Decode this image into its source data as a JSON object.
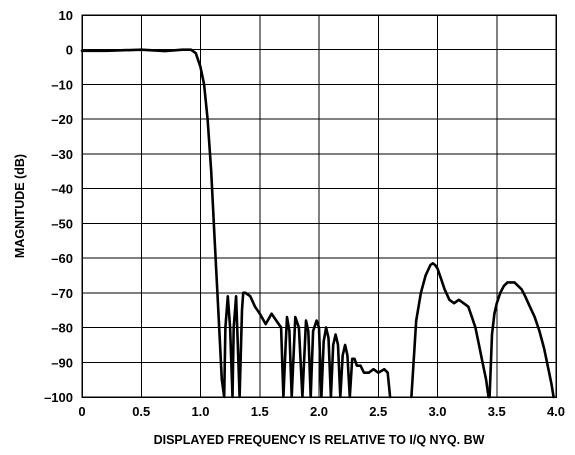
{
  "chart_data": {
    "type": "line",
    "title": "",
    "xlabel": "DISPLAYED FREQUENCY IS RELATIVE TO I/Q NYQ. BW",
    "ylabel": "MAGNITUDE (dB)",
    "xlim": [
      0,
      4.0
    ],
    "ylim": [
      -100,
      10
    ],
    "xticks": [
      0,
      0.5,
      1.0,
      1.5,
      2.0,
      2.5,
      3.0,
      3.5,
      4.0
    ],
    "xtick_labels": [
      "0",
      "0.5",
      "1.0",
      "1.5",
      "2.0",
      "2.5",
      "3.0",
      "3.5",
      "4.0"
    ],
    "yticks": [
      10,
      0,
      -10,
      -20,
      -30,
      -40,
      -50,
      -60,
      -70,
      -80,
      -90,
      -100
    ],
    "ytick_labels": [
      "10",
      "0",
      "–10",
      "–20",
      "–30",
      "–40",
      "–50",
      "–60",
      "–70",
      "–80",
      "–90",
      "–100"
    ],
    "grid": true,
    "series": [
      {
        "x": [
          0,
          0.2,
          0.5,
          0.7,
          0.85,
          0.92,
          0.96,
          1.0,
          1.03,
          1.06,
          1.09,
          1.12,
          1.15,
          1.18,
          1.2,
          1.21,
          1.23,
          1.25,
          1.27,
          1.28,
          1.3,
          1.31,
          1.33,
          1.35,
          1.36,
          1.38,
          1.42,
          1.46,
          1.5,
          1.55,
          1.6,
          1.64,
          1.68,
          1.7,
          1.72,
          1.73,
          1.75,
          1.77,
          1.8,
          1.83,
          1.86,
          1.89,
          1.91,
          1.93,
          1.95,
          1.98,
          2.0,
          2.02,
          2.04,
          2.06,
          2.08,
          2.1,
          2.12,
          2.14,
          2.16,
          2.18,
          2.2,
          2.22,
          2.24,
          2.26,
          2.28,
          2.3,
          2.32,
          2.35,
          2.38,
          2.42,
          2.46,
          2.5,
          2.55,
          2.58,
          2.6
        ],
        "y": [
          -0.3,
          -0.3,
          0,
          -0.4,
          0,
          0,
          -1,
          -5,
          -10,
          -20,
          -35,
          -55,
          -75,
          -95,
          -100,
          -80,
          -71,
          -80,
          -100,
          -80,
          -71,
          -80,
          -100,
          -75,
          -70,
          -70,
          -71,
          -74,
          -76,
          -79,
          -76,
          -78,
          -80,
          -100,
          -84,
          -77,
          -81,
          -100,
          -77,
          -80,
          -100,
          -78,
          -81,
          -100,
          -81,
          -78,
          -80,
          -100,
          -84,
          -80,
          -83,
          -100,
          -85,
          -82,
          -85,
          -100,
          -88,
          -85,
          -88,
          -100,
          -89,
          -89,
          -91,
          -91,
          -93,
          -93,
          -92,
          -93,
          -92,
          -93,
          -100
        ]
      },
      {
        "x": [
          2.78,
          2.82,
          2.86,
          2.9,
          2.94,
          2.96,
          2.98,
          3.0,
          3.03,
          3.06,
          3.1,
          3.14,
          3.18,
          3.22,
          3.26,
          3.29,
          3.32,
          3.35,
          3.38,
          3.41,
          3.43,
          3.44
        ],
        "y": [
          -100,
          -78,
          -70,
          -65,
          -62,
          -61.5,
          -62,
          -63,
          -66,
          -69,
          -72,
          -73,
          -72,
          -73,
          -74,
          -77,
          -80,
          -85,
          -90,
          -95,
          -100,
          -100
        ]
      },
      {
        "x": [
          3.44,
          3.46,
          3.48,
          3.5,
          3.53,
          3.56,
          3.59,
          3.62,
          3.65,
          3.68,
          3.71,
          3.74,
          3.78,
          3.82,
          3.86,
          3.9,
          3.93,
          3.96,
          3.98
        ],
        "y": [
          -100,
          -82,
          -76,
          -73,
          -70,
          -68,
          -67,
          -67,
          -67,
          -68,
          -69,
          -71,
          -74,
          -77,
          -81,
          -86,
          -91,
          -96,
          -100
        ]
      }
    ]
  }
}
